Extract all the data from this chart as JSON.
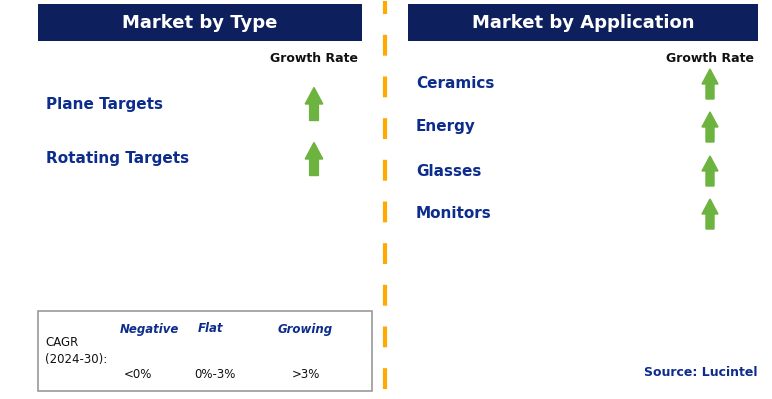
{
  "left_panel_title": "Market by Type",
  "right_panel_title": "Market by Application",
  "left_items": [
    "Plane Targets",
    "Rotating Targets"
  ],
  "right_items": [
    "Ceramics",
    "Energy",
    "Glasses",
    "Monitors"
  ],
  "header_bg_color": "#0d1f5c",
  "header_text_color": "#ffffff",
  "item_text_color": "#0d2d8c",
  "growth_rate_label": "Growth Rate",
  "growth_rate_color": "#111111",
  "arrow_up_color": "#6db33f",
  "arrow_down_color": "#cc0000",
  "arrow_flat_color": "#ffaa00",
  "divider_color": "#ffaa00",
  "legend_border_color": "#999999",
  "source_text": "Source: Lucintel",
  "source_color": "#0d2d8c",
  "legend_cagr_line1": "CAGR",
  "legend_cagr_line2": "(2024-30):",
  "legend_negative_label": "Negative",
  "legend_flat_label": "Flat",
  "legend_growing_label": "Growing",
  "legend_negative_range": "<0%",
  "legend_flat_range": "0%-3%",
  "legend_growing_range": ">3%",
  "bg_color": "#ffffff"
}
